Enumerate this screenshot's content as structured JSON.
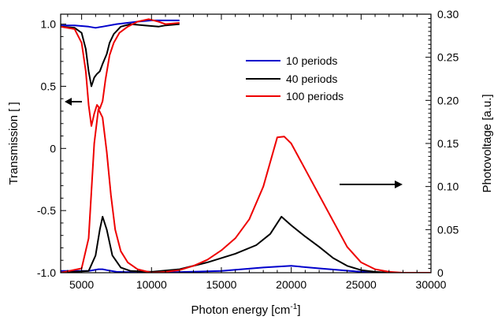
{
  "chart_data": {
    "type": "line",
    "xlabel": "Photon energy [cm",
    "xlabel_sup": "-1",
    "xlabel_end": "]",
    "ylabel_left": "Transmission [ ]",
    "ylabel_right": "Photovoltage [a.u.]",
    "xlim": [
      3500,
      30000
    ],
    "ylim_left": [
      -1.0,
      1.08
    ],
    "ylim_right": [
      0,
      0.3
    ],
    "x_ticks": [
      5000,
      10000,
      15000,
      20000,
      25000,
      30000
    ],
    "x_tick_labels": [
      "5000",
      "10000",
      "15000",
      "20000",
      "25000",
      "30000"
    ],
    "y_left_ticks": [
      1.0,
      0.5,
      0,
      -0.5,
      -1.0
    ],
    "y_left_tick_labels": [
      "1.0",
      "0.5",
      "0",
      "-0.5",
      "-1.0"
    ],
    "y_right_ticks": [
      0,
      0.05,
      0.1,
      0.15,
      0.2,
      0.25,
      0.3
    ],
    "y_right_tick_labels": [
      "0",
      "0.05",
      "0.10",
      "0.15",
      "0.20",
      "0.25",
      "0.30"
    ],
    "legend_position": "upper-center-right",
    "colors": {
      "10 periods": "#0000cc",
      "40 periods": "#000000",
      "100 periods": "#ee0000"
    },
    "series": [
      {
        "name": "10 periods",
        "axis": "left",
        "color": "#0000cc",
        "x": [
          3500,
          4500,
          5500,
          6000,
          6500,
          7500,
          9000,
          10000,
          11000,
          12000
        ],
        "y": [
          0.99,
          0.99,
          0.98,
          0.97,
          0.98,
          1.0,
          1.02,
          1.03,
          1.03,
          1.03
        ]
      },
      {
        "name": "40 periods",
        "axis": "left",
        "color": "#000000",
        "x": [
          3500,
          4500,
          5000,
          5300,
          5500,
          5700,
          5900,
          6100,
          6300,
          6500,
          6800,
          7000,
          7300,
          7800,
          8500,
          9500,
          10500,
          11000,
          12000
        ],
        "y": [
          0.98,
          0.97,
          0.93,
          0.8,
          0.62,
          0.5,
          0.57,
          0.6,
          0.62,
          0.68,
          0.76,
          0.85,
          0.92,
          0.98,
          1.0,
          0.99,
          0.98,
          0.99,
          1.0
        ]
      },
      {
        "name": "100 periods",
        "axis": "left",
        "color": "#ee0000",
        "x": [
          3500,
          4500,
          5000,
          5300,
          5500,
          5700,
          5900,
          6100,
          6300,
          6500,
          6700,
          7000,
          7300,
          7700,
          8300,
          9000,
          9800,
          10500,
          11000,
          12000
        ],
        "y": [
          0.98,
          0.96,
          0.85,
          0.62,
          0.35,
          0.18,
          0.28,
          0.35,
          0.32,
          0.38,
          0.55,
          0.75,
          0.85,
          0.93,
          0.98,
          1.02,
          1.04,
          1.02,
          1.0,
          1.01
        ]
      },
      {
        "name": "10 periods",
        "axis": "right",
        "color": "#0000cc",
        "x": [
          3500,
          5500,
          6200,
          6500,
          6800,
          7500,
          10000,
          15000,
          18000,
          20000,
          22000,
          25000,
          27000,
          30000
        ],
        "y": [
          0.002,
          0.002,
          0.004,
          0.004,
          0.003,
          0.001,
          0.0,
          0.002,
          0.006,
          0.008,
          0.005,
          0.001,
          0.0,
          0.0
        ]
      },
      {
        "name": "40 periods",
        "axis": "right",
        "color": "#000000",
        "x": [
          3500,
          5500,
          6000,
          6300,
          6500,
          6800,
          7200,
          7800,
          8500,
          10000,
          12000,
          14000,
          16000,
          17500,
          18500,
          19300,
          20000,
          21000,
          22000,
          23000,
          24000,
          25000,
          26000,
          27000,
          30000
        ],
        "y": [
          0.0,
          0.002,
          0.02,
          0.05,
          0.065,
          0.05,
          0.02,
          0.006,
          0.002,
          0.001,
          0.004,
          0.012,
          0.022,
          0.032,
          0.045,
          0.065,
          0.055,
          0.042,
          0.03,
          0.017,
          0.008,
          0.003,
          0.001,
          0.0,
          0.0
        ]
      },
      {
        "name": "100 periods",
        "axis": "right",
        "color": "#ee0000",
        "x": [
          3500,
          5000,
          5500,
          5900,
          6200,
          6500,
          6800,
          7100,
          7400,
          7800,
          8300,
          9000,
          10000,
          11000,
          12000,
          13000,
          14000,
          15000,
          16000,
          17000,
          18000,
          19000,
          19500,
          20000,
          21000,
          22000,
          23000,
          24000,
          25000,
          26000,
          27000,
          28000,
          30000
        ],
        "y": [
          0.0,
          0.005,
          0.04,
          0.15,
          0.19,
          0.18,
          0.14,
          0.09,
          0.05,
          0.025,
          0.012,
          0.004,
          0.0,
          0.001,
          0.003,
          0.008,
          0.015,
          0.026,
          0.04,
          0.062,
          0.1,
          0.157,
          0.158,
          0.15,
          0.12,
          0.09,
          0.06,
          0.03,
          0.012,
          0.004,
          0.001,
          0.0,
          0.0
        ]
      }
    ],
    "legend": [
      "10 periods",
      "40 periods",
      "100 periods"
    ]
  }
}
